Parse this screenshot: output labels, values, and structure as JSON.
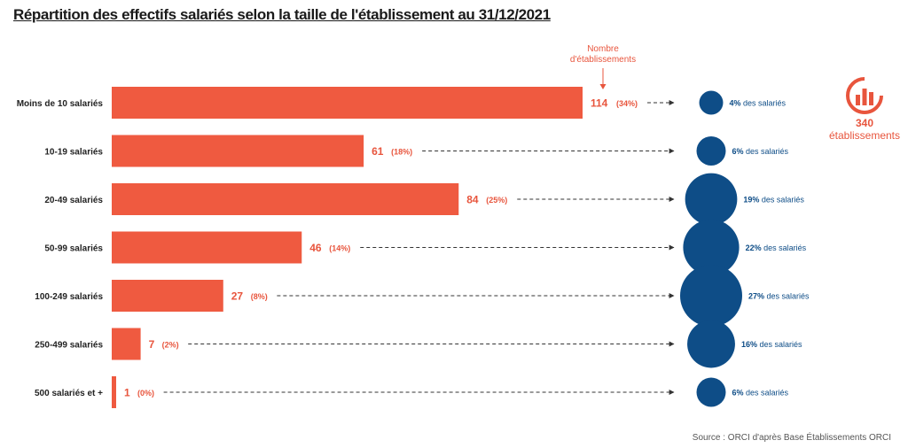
{
  "title": "Répartition des effectifs salariés selon la taille de l'établissement au 31/12/2021",
  "annotation": {
    "line1": "Nombre",
    "line2": "d'établissements"
  },
  "total": {
    "value": "340",
    "label": "établissements",
    "icon": "bar-chart-circle-icon"
  },
  "source": "Source : ORCI d'après Base Établissements ORCI",
  "colors": {
    "bar": "#ef5a40",
    "bubble": "#0e4d87",
    "accent": "#e8553d"
  },
  "chart_data": {
    "type": "bar",
    "orientation": "horizontal",
    "categories": [
      "Moins de 10 salariés",
      "10-19 salariés",
      "20-49 salariés",
      "50-99 salariés",
      "100-249 salariés",
      "250-499 salariés",
      "500 salariés et +"
    ],
    "values": [
      114,
      61,
      84,
      46,
      27,
      7,
      1
    ],
    "value_labels": [
      "114",
      "61",
      "84",
      "46",
      "27",
      "7",
      "1"
    ],
    "pct_labels": [
      "(34%)",
      "(18%)",
      "(25%)",
      "(14%)",
      "(8%)",
      "(2%)",
      "(0%)"
    ],
    "xlim": [
      0,
      114
    ],
    "bubbles": {
      "values": [
        4,
        6,
        19,
        22,
        27,
        16,
        6
      ],
      "bold_labels": [
        "4%",
        "6%",
        "19%",
        "22%",
        "27%",
        "16%",
        "6%"
      ],
      "suffix": "des salariés"
    }
  }
}
